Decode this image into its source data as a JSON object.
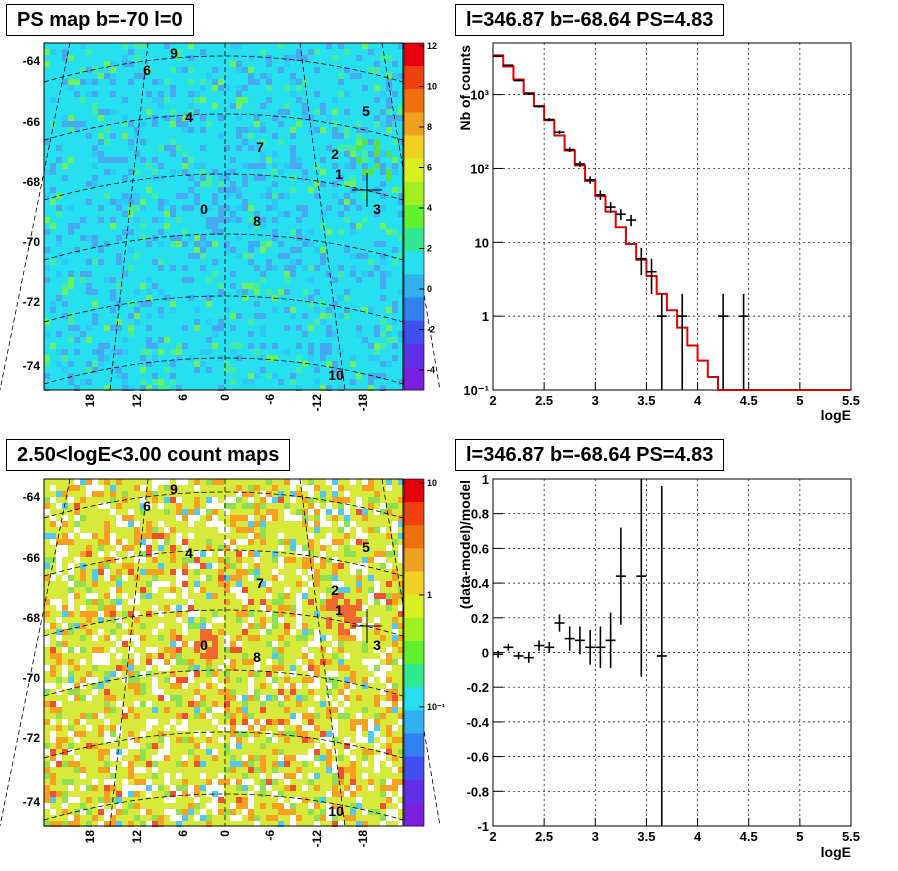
{
  "panels": {
    "top_left_title": "PS map b=-70 l=0",
    "top_right_title": "l=346.87 b=-68.64 PS=4.83",
    "bottom_left_title": "2.50<logE<3.00 count maps",
    "bottom_right_title": "l=346.87 b=-68.64 PS=4.83"
  },
  "chart_data": [
    {
      "type": "heatmap",
      "name": "ps-map",
      "y_ticks": [
        "-64",
        "-66",
        "-68",
        "-70",
        "-72",
        "-74"
      ],
      "x_ticks": [
        "18",
        "12",
        "6",
        "0",
        "-6",
        "-12",
        "-18"
      ],
      "colorbar_ticks": [
        "12",
        "10",
        "8",
        "6",
        "4",
        "2",
        "0",
        "-2",
        "-4"
      ],
      "zlim": [
        -5,
        12
      ],
      "sources": [
        {
          "label": "0"
        },
        {
          "label": "1"
        },
        {
          "label": "2"
        },
        {
          "label": "3"
        },
        {
          "label": "4"
        },
        {
          "label": "5"
        },
        {
          "label": "6"
        },
        {
          "label": "7"
        },
        {
          "label": "8"
        },
        {
          "label": "9"
        },
        {
          "label": "10"
        }
      ]
    },
    {
      "type": "line",
      "name": "spectrum",
      "xlabel": "logE",
      "ylabel": "Nb of counts",
      "ylog": true,
      "xlim": [
        2,
        5.5
      ],
      "ylim": [
        0.1,
        5000
      ],
      "x_ticks": [
        "2",
        "2.5",
        "3",
        "3.5",
        "4",
        "4.5",
        "5",
        "5.5"
      ],
      "y_ticks": [
        {
          "value": 0.1,
          "label": "10⁻¹"
        },
        {
          "value": 1,
          "label": "1"
        },
        {
          "value": 10,
          "label": "10"
        },
        {
          "value": 100,
          "label": "10²"
        },
        {
          "value": 1000,
          "label": "10³"
        }
      ],
      "model_series": {
        "x": [
          2.0,
          2.1,
          2.2,
          2.3,
          2.4,
          2.5,
          2.6,
          2.7,
          2.8,
          2.9,
          3.0,
          3.1,
          3.2,
          3.3,
          3.4,
          3.5,
          3.6,
          3.7,
          3.8,
          3.9,
          4.0,
          4.1,
          4.2,
          4.3,
          4.4,
          4.5,
          4.6,
          4.7,
          4.8,
          4.9,
          5.0,
          5.1,
          5.2,
          5.3,
          5.4
        ],
        "y": [
          3400,
          2400,
          1600,
          1050,
          700,
          450,
          280,
          175,
          110,
          68,
          42,
          26,
          16,
          9.5,
          5.8,
          3.5,
          2.0,
          1.2,
          0.7,
          0.4,
          0.25,
          0.15,
          0.1,
          0.1,
          0.1,
          0.1,
          0.1,
          0.1,
          0.1,
          0.1,
          0.1,
          0.1,
          0.1,
          0.1,
          0.1
        ]
      },
      "data_points": {
        "x": [
          2.05,
          2.15,
          2.25,
          2.35,
          2.45,
          2.55,
          2.65,
          2.75,
          2.85,
          2.95,
          3.05,
          3.15,
          3.25,
          3.35,
          3.45,
          3.55,
          3.65,
          3.85,
          4.25,
          4.45
        ],
        "y": [
          3300,
          2500,
          1550,
          1020,
          690,
          460,
          310,
          180,
          115,
          70,
          44,
          30,
          24,
          20,
          6,
          4,
          1,
          1,
          1,
          1
        ],
        "err_lo": [
          60,
          50,
          40,
          32,
          26,
          21,
          17,
          13,
          10,
          8,
          6.5,
          5,
          4,
          3.5,
          2.4,
          2,
          0.99,
          0.99,
          0.99,
          0.99
        ],
        "err_hi": [
          60,
          50,
          40,
          32,
          26,
          21,
          17,
          13,
          10,
          8,
          6.5,
          5,
          4,
          3.5,
          2.4,
          2,
          1,
          1,
          1,
          1
        ]
      }
    },
    {
      "type": "heatmap",
      "name": "count-map",
      "y_ticks": [
        "-64",
        "-66",
        "-68",
        "-70",
        "-72",
        "-74"
      ],
      "x_ticks": [
        "18",
        "12",
        "6",
        "0",
        "-6",
        "-12",
        "-18"
      ],
      "colorbar_ticks": [
        {
          "value": 10,
          "label": "10"
        },
        {
          "value": 1,
          "label": "1"
        },
        {
          "value": 0.1,
          "label": "10⁻¹"
        }
      ],
      "sources": [
        {
          "label": "0"
        },
        {
          "label": "1"
        },
        {
          "label": "2"
        },
        {
          "label": "3"
        },
        {
          "label": "4"
        },
        {
          "label": "5"
        },
        {
          "label": "6"
        },
        {
          "label": "7"
        },
        {
          "label": "8"
        },
        {
          "label": "9"
        },
        {
          "label": "10"
        }
      ]
    },
    {
      "type": "scatter",
      "name": "residuals",
      "xlabel": "logE",
      "ylabel": "(data-model)/model",
      "xlim": [
        2,
        5.5
      ],
      "ylim": [
        -1,
        1
      ],
      "x_ticks": [
        "2",
        "2.5",
        "3",
        "3.5",
        "4",
        "4.5",
        "5",
        "5.5"
      ],
      "y_ticks": [
        "-1",
        "-0.8",
        "-0.6",
        "-0.4",
        "-0.2",
        "0",
        "0.2",
        "0.4",
        "0.6",
        "0.8",
        "1"
      ],
      "points": {
        "x": [
          2.05,
          2.15,
          2.25,
          2.35,
          2.45,
          2.55,
          2.65,
          2.75,
          2.85,
          2.95,
          3.05,
          3.15,
          3.25,
          3.45,
          3.65
        ],
        "y": [
          -0.01,
          0.03,
          -0.02,
          -0.03,
          0.04,
          0.03,
          0.17,
          0.08,
          0.07,
          0.03,
          0.03,
          0.07,
          0.44,
          0.44,
          -0.02
        ],
        "err": [
          0.02,
          0.02,
          0.02,
          0.03,
          0.03,
          0.03,
          0.05,
          0.07,
          0.08,
          0.1,
          0.12,
          0.16,
          0.28,
          0.58,
          0.98
        ]
      }
    }
  ]
}
